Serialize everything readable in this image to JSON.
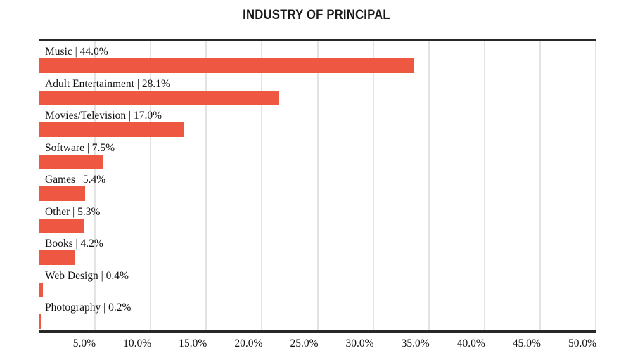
{
  "title": "INDUSTRY OF PRINCIPAL",
  "colors": {
    "bar": "#ee5741",
    "gridline": "#e3e3e3",
    "axis_line": "#282828",
    "label_text": "#101010",
    "title_text": "#1a1a1a",
    "background": "#ffffff"
  },
  "chart_data": {
    "type": "bar",
    "orientation": "horizontal",
    "title": "INDUSTRY OF PRINCIPAL",
    "categories": [
      "Music",
      "Adult Entertainment",
      "Movies/Television",
      "Software",
      "Games",
      "Other",
      "Books",
      "Web Design",
      "Photography"
    ],
    "values": [
      44.0,
      28.1,
      17.0,
      7.5,
      5.4,
      5.3,
      4.2,
      0.4,
      0.2
    ],
    "value_labels": [
      "44.0%",
      "28.1%",
      "17.0%",
      "7.5%",
      "5.4%",
      "5.3%",
      "4.2%",
      "0.4%",
      "0.2%"
    ],
    "row_labels": [
      "Music | 44.0%",
      "Adult Entertainment | 28.1%",
      "Movies/Television | 17.0%",
      "Software | 7.5%",
      "Games | 5.4%",
      "Other | 5.3%",
      "Books | 4.2%",
      "Web Design | 0.4%",
      "Photography | 0.2%"
    ],
    "label_separator": " | ",
    "x_tick_labels": [
      "5.0%",
      "10.0%",
      "15.0%",
      "20.0%",
      "25.0%",
      "30.0%",
      "35.0%",
      "40.0%",
      "45.0%",
      "50.0%"
    ],
    "x_tick_values": [
      5,
      10,
      15,
      20,
      25,
      30,
      35,
      40,
      45,
      50
    ],
    "xlim": [
      0,
      50
    ],
    "grid": "vertical-only",
    "legend": "none",
    "value_label_position": "inline-with-category-above-bar"
  }
}
